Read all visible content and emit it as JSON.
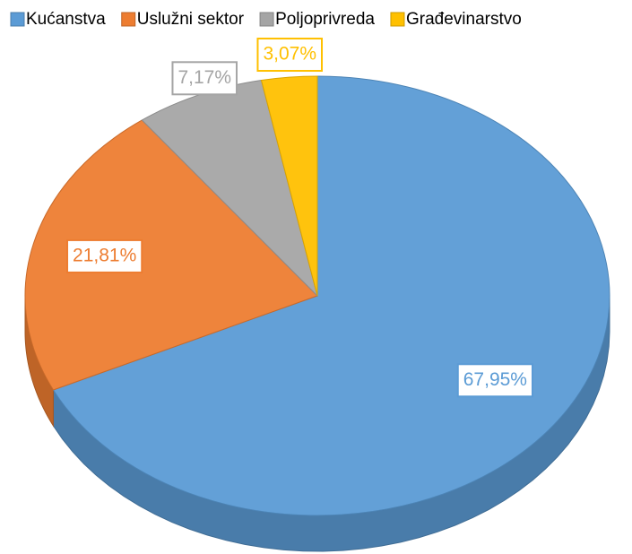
{
  "chart_data": {
    "type": "pie",
    "categories": [
      "Kućanstva",
      "Uslužni sektor",
      "Poljoprivreda",
      "Građevinarstvo"
    ],
    "values": [
      67.95,
      21.81,
      7.17,
      3.07
    ],
    "value_labels": [
      "67,95%",
      "21,81%",
      "7,17%",
      "3,07%"
    ],
    "colors": [
      "#5b9bd5",
      "#ed7d31",
      "#a5a5a5",
      "#ffc000"
    ],
    "legend": "top"
  }
}
